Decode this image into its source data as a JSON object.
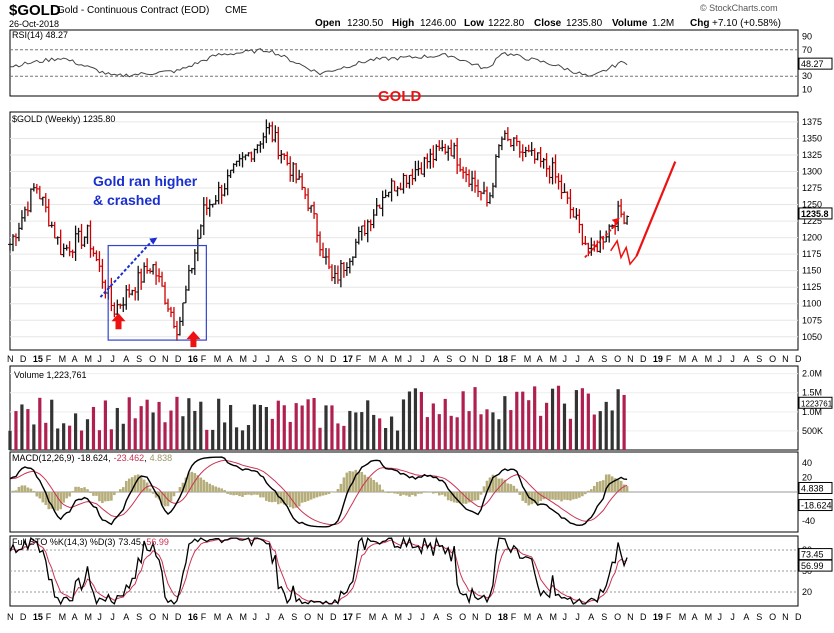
{
  "header": {
    "symbol": "$GOLD",
    "name": "Gold - Continuous Contract (EOD)",
    "exchange": "CME",
    "date": "26-Oct-2018",
    "open_label": "Open",
    "open": "1230.50",
    "high_label": "High",
    "high": "1246.00",
    "low_label": "Low",
    "low": "1222.80",
    "close_label": "Close",
    "close": "1235.80",
    "volume_label": "Volume",
    "volume": "1.2M",
    "chg_label": "Chg",
    "chg": "+7.10 (+0.58%)",
    "watermark": "© StockCharts.com"
  },
  "x_axis_labels": [
    "N",
    "D",
    "15",
    "F",
    "M",
    "A",
    "M",
    "J",
    "J",
    "A",
    "S",
    "O",
    "N",
    "D",
    "16",
    "F",
    "M",
    "A",
    "M",
    "J",
    "J",
    "A",
    "S",
    "O",
    "N",
    "D",
    "17",
    "F",
    "M",
    "A",
    "M",
    "J",
    "J",
    "A",
    "S",
    "O",
    "N",
    "D",
    "18",
    "F",
    "M",
    "A",
    "M",
    "J",
    "J",
    "A",
    "S",
    "O",
    "N",
    "D",
    "19",
    "F",
    "M",
    "A",
    "M",
    "J",
    "J",
    "A",
    "S",
    "O",
    "N",
    "D"
  ],
  "colors": {
    "price_up": "#111111",
    "price_down": "#cc0000",
    "volume_up": "#333333",
    "volume_down": "#b0204f",
    "annotation_red": "#ee1111",
    "annotation_blue": "#1a2fcf",
    "macd_hist": "#b5ad7a",
    "signal": "#cc3355"
  },
  "chart_data": [
    {
      "type": "line",
      "panel": "rsi",
      "legend": "RSI(14) 48.27",
      "last_value": "48.27",
      "y_ticks": [
        "90",
        "70",
        "50",
        "30",
        "10"
      ],
      "ylim": [
        0,
        100
      ],
      "reference_lines": [
        70,
        30
      ],
      "x_range": [
        "Nov 2014",
        "Dec 2019"
      ],
      "approx_path": [
        {
          "t": "2014-11",
          "v": 45
        },
        {
          "t": "2015-03",
          "v": 58
        },
        {
          "t": "2015-07",
          "v": 30
        },
        {
          "t": "2015-12",
          "v": 38
        },
        {
          "t": "2016-03",
          "v": 62
        },
        {
          "t": "2016-07",
          "v": 70
        },
        {
          "t": "2016-11",
          "v": 34
        },
        {
          "t": "2017-03",
          "v": 55
        },
        {
          "t": "2017-09",
          "v": 62
        },
        {
          "t": "2017-12",
          "v": 40
        },
        {
          "t": "2018-01",
          "v": 66
        },
        {
          "t": "2018-05",
          "v": 48
        },
        {
          "t": "2018-08",
          "v": 28
        },
        {
          "t": "2018-10",
          "v": 48
        }
      ]
    },
    {
      "type": "candlestick",
      "panel": "price",
      "legend": "$GOLD (Weekly) 1235.80",
      "last_value": "1235.8",
      "ylim": [
        1030,
        1390
      ],
      "y_ticks": [
        "1375",
        "1350",
        "1325",
        "1300",
        "1275",
        "1250",
        "1225",
        "1200",
        "1175",
        "1150",
        "1125",
        "1100",
        "1075",
        "1050"
      ],
      "x_range": [
        "Nov 2014",
        "Dec 2019"
      ],
      "approx_closes": [
        {
          "t": "2014-11",
          "v": 1190
        },
        {
          "t": "2015-01",
          "v": 1280
        },
        {
          "t": "2015-03",
          "v": 1180
        },
        {
          "t": "2015-05",
          "v": 1205
        },
        {
          "t": "2015-07",
          "v": 1090
        },
        {
          "t": "2015-10",
          "v": 1160
        },
        {
          "t": "2015-12",
          "v": 1062
        },
        {
          "t": "2016-02",
          "v": 1240
        },
        {
          "t": "2016-07",
          "v": 1365
        },
        {
          "t": "2016-10",
          "v": 1260
        },
        {
          "t": "2016-12",
          "v": 1130
        },
        {
          "t": "2017-04",
          "v": 1270
        },
        {
          "t": "2017-09",
          "v": 1340
        },
        {
          "t": "2017-12",
          "v": 1250
        },
        {
          "t": "2018-01",
          "v": 1350
        },
        {
          "t": "2018-05",
          "v": 1300
        },
        {
          "t": "2018-08",
          "v": 1175
        },
        {
          "t": "2018-10",
          "v": 1235
        }
      ],
      "annotations": [
        {
          "text": "GOLD"
        },
        {
          "text": "Gold ran higher & crashed"
        }
      ]
    },
    {
      "type": "bar",
      "panel": "volume",
      "legend": "Volume 1,223,761",
      "last_value": "1223761",
      "y_ticks": [
        "2.0M",
        "1.5M",
        "1.0M",
        "500K"
      ],
      "ylim": [
        0,
        2200000
      ],
      "x_range": [
        "Nov 2014",
        "Nov 2018"
      ]
    },
    {
      "type": "line",
      "panel": "macd",
      "legend": "MACD(12,26,9) -18.624, -23.462, 4.838",
      "legend_prefix": "MACD(12,26,9)",
      "legend_values": [
        "-18.624",
        "-23.462",
        "4.838"
      ],
      "series_values_last": {
        "macd": -18.624,
        "signal": -23.462,
        "histogram": 4.838
      },
      "y_ticks": [
        "40",
        "20",
        "-20",
        "-40"
      ],
      "last_tags": [
        "4.838",
        "-18.624"
      ],
      "ylim": [
        -55,
        55
      ]
    },
    {
      "type": "line",
      "panel": "stochastic",
      "legend": "Full STO %K(14,3) %D(3) 73.45, 56.99",
      "legend_prefix": "Full STO %K(14,3) %D(3)",
      "legend_values": [
        "73.45",
        "56.99"
      ],
      "series_values_last": {
        "k": 73.45,
        "d": 56.99
      },
      "y_ticks": [
        "80",
        "50",
        "20"
      ],
      "last_tags": [
        "73.45",
        "56.99"
      ],
      "ylim": [
        0,
        100
      ]
    }
  ]
}
